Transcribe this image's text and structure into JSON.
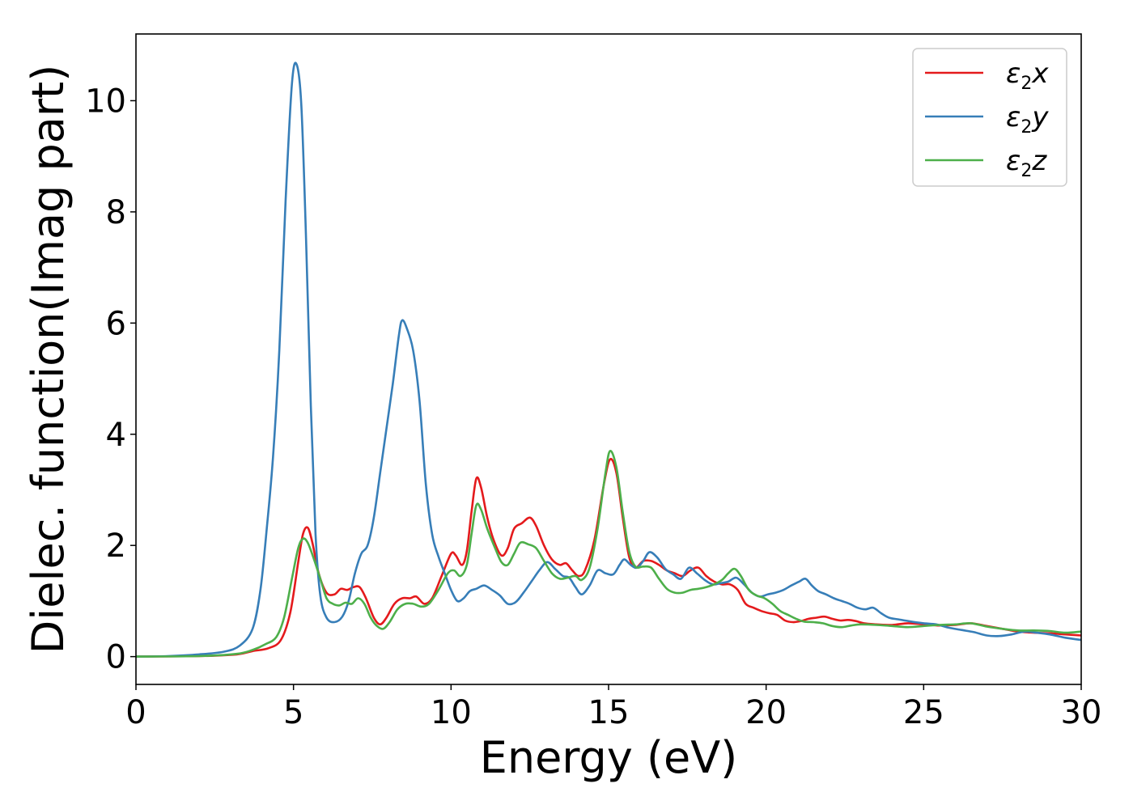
{
  "chart_data": {
    "type": "line",
    "title": "",
    "xlabel": "Energy (eV)",
    "ylabel": "Dielec. function(Imag part)",
    "xlim": [
      0,
      30
    ],
    "ylim": [
      -0.5,
      11.2
    ],
    "xticks": [
      0,
      5,
      10,
      15,
      20,
      25,
      30
    ],
    "yticks": [
      0,
      2,
      4,
      6,
      8,
      10
    ],
    "xtick_labels": [
      "0",
      "5",
      "10",
      "15",
      "20",
      "25",
      "30"
    ],
    "ytick_labels": [
      "0",
      "2",
      "4",
      "6",
      "8",
      "10"
    ],
    "grid": false,
    "legend_position": "top-right",
    "series": [
      {
        "name": "ε2x",
        "legend_base": "ε",
        "legend_sub": "2",
        "legend_var": "x",
        "color": "#e41a1c",
        "points": [
          [
            0,
            0
          ],
          [
            2,
            0.01
          ],
          [
            3.2,
            0.04
          ],
          [
            3.7,
            0.1
          ],
          [
            4.2,
            0.15
          ],
          [
            4.6,
            0.3
          ],
          [
            4.9,
            0.8
          ],
          [
            5.15,
            1.7
          ],
          [
            5.3,
            2.2
          ],
          [
            5.45,
            2.32
          ],
          [
            5.6,
            2.05
          ],
          [
            5.8,
            1.5
          ],
          [
            6.05,
            1.15
          ],
          [
            6.3,
            1.12
          ],
          [
            6.5,
            1.22
          ],
          [
            6.7,
            1.2
          ],
          [
            6.9,
            1.25
          ],
          [
            7.1,
            1.25
          ],
          [
            7.3,
            1.05
          ],
          [
            7.55,
            0.7
          ],
          [
            7.75,
            0.58
          ],
          [
            7.95,
            0.7
          ],
          [
            8.2,
            0.95
          ],
          [
            8.45,
            1.05
          ],
          [
            8.7,
            1.05
          ],
          [
            8.9,
            1.08
          ],
          [
            9.15,
            0.95
          ],
          [
            9.4,
            1.05
          ],
          [
            9.7,
            1.45
          ],
          [
            10.0,
            1.85
          ],
          [
            10.15,
            1.82
          ],
          [
            10.35,
            1.65
          ],
          [
            10.5,
            1.9
          ],
          [
            10.65,
            2.6
          ],
          [
            10.8,
            3.2
          ],
          [
            10.95,
            3.05
          ],
          [
            11.15,
            2.5
          ],
          [
            11.35,
            2.1
          ],
          [
            11.6,
            1.82
          ],
          [
            11.8,
            1.95
          ],
          [
            12.0,
            2.3
          ],
          [
            12.25,
            2.4
          ],
          [
            12.5,
            2.5
          ],
          [
            12.7,
            2.35
          ],
          [
            12.95,
            2.0
          ],
          [
            13.2,
            1.75
          ],
          [
            13.45,
            1.65
          ],
          [
            13.65,
            1.68
          ],
          [
            13.85,
            1.55
          ],
          [
            14.05,
            1.45
          ],
          [
            14.25,
            1.55
          ],
          [
            14.55,
            2.1
          ],
          [
            14.85,
            3.1
          ],
          [
            15.05,
            3.55
          ],
          [
            15.25,
            3.3
          ],
          [
            15.45,
            2.5
          ],
          [
            15.65,
            1.8
          ],
          [
            15.85,
            1.6
          ],
          [
            16.1,
            1.72
          ],
          [
            16.35,
            1.72
          ],
          [
            16.6,
            1.65
          ],
          [
            16.85,
            1.55
          ],
          [
            17.1,
            1.5
          ],
          [
            17.35,
            1.45
          ],
          [
            17.6,
            1.55
          ],
          [
            17.85,
            1.6
          ],
          [
            18.1,
            1.45
          ],
          [
            18.35,
            1.35
          ],
          [
            18.6,
            1.3
          ],
          [
            18.85,
            1.3
          ],
          [
            19.1,
            1.2
          ],
          [
            19.35,
            0.95
          ],
          [
            19.6,
            0.88
          ],
          [
            19.85,
            0.82
          ],
          [
            20.1,
            0.78
          ],
          [
            20.35,
            0.75
          ],
          [
            20.6,
            0.65
          ],
          [
            20.85,
            0.62
          ],
          [
            21.1,
            0.64
          ],
          [
            21.35,
            0.68
          ],
          [
            21.6,
            0.7
          ],
          [
            21.85,
            0.72
          ],
          [
            22.1,
            0.68
          ],
          [
            22.35,
            0.65
          ],
          [
            22.6,
            0.66
          ],
          [
            22.85,
            0.64
          ],
          [
            23.1,
            0.6
          ],
          [
            23.5,
            0.58
          ],
          [
            24.0,
            0.57
          ],
          [
            24.5,
            0.6
          ],
          [
            25.0,
            0.58
          ],
          [
            25.5,
            0.56
          ],
          [
            26.0,
            0.57
          ],
          [
            26.5,
            0.6
          ],
          [
            27.0,
            0.55
          ],
          [
            27.5,
            0.5
          ],
          [
            28.0,
            0.45
          ],
          [
            28.5,
            0.43
          ],
          [
            29.0,
            0.42
          ],
          [
            29.5,
            0.4
          ],
          [
            30,
            0.38
          ]
        ]
      },
      {
        "name": "ε2y",
        "legend_base": "ε",
        "legend_sub": "2",
        "legend_var": "y",
        "color": "#377eb8",
        "points": [
          [
            0,
            0
          ],
          [
            1,
            0.01
          ],
          [
            2,
            0.04
          ],
          [
            2.8,
            0.09
          ],
          [
            3.3,
            0.2
          ],
          [
            3.7,
            0.5
          ],
          [
            3.95,
            1.2
          ],
          [
            4.15,
            2.3
          ],
          [
            4.35,
            3.6
          ],
          [
            4.55,
            5.5
          ],
          [
            4.75,
            8.2
          ],
          [
            4.95,
            10.3
          ],
          [
            5.1,
            10.65
          ],
          [
            5.25,
            9.9
          ],
          [
            5.4,
            7.5
          ],
          [
            5.55,
            4.5
          ],
          [
            5.7,
            2.2
          ],
          [
            5.85,
            1.1
          ],
          [
            6.05,
            0.7
          ],
          [
            6.3,
            0.62
          ],
          [
            6.55,
            0.72
          ],
          [
            6.75,
            1.0
          ],
          [
            6.95,
            1.5
          ],
          [
            7.15,
            1.85
          ],
          [
            7.35,
            2.0
          ],
          [
            7.55,
            2.5
          ],
          [
            7.75,
            3.3
          ],
          [
            7.95,
            4.1
          ],
          [
            8.15,
            4.9
          ],
          [
            8.35,
            5.8
          ],
          [
            8.45,
            6.05
          ],
          [
            8.6,
            5.9
          ],
          [
            8.8,
            5.5
          ],
          [
            9.0,
            4.6
          ],
          [
            9.2,
            3.1
          ],
          [
            9.4,
            2.2
          ],
          [
            9.6,
            1.8
          ],
          [
            9.8,
            1.5
          ],
          [
            10.0,
            1.2
          ],
          [
            10.2,
            1.0
          ],
          [
            10.4,
            1.05
          ],
          [
            10.6,
            1.18
          ],
          [
            10.8,
            1.22
          ],
          [
            11.05,
            1.28
          ],
          [
            11.3,
            1.2
          ],
          [
            11.55,
            1.1
          ],
          [
            11.8,
            0.95
          ],
          [
            12.05,
            0.98
          ],
          [
            12.3,
            1.15
          ],
          [
            12.55,
            1.35
          ],
          [
            12.8,
            1.55
          ],
          [
            13.05,
            1.7
          ],
          [
            13.3,
            1.58
          ],
          [
            13.55,
            1.45
          ],
          [
            13.75,
            1.42
          ],
          [
            13.95,
            1.25
          ],
          [
            14.15,
            1.12
          ],
          [
            14.4,
            1.28
          ],
          [
            14.65,
            1.55
          ],
          [
            14.9,
            1.5
          ],
          [
            15.15,
            1.48
          ],
          [
            15.35,
            1.65
          ],
          [
            15.5,
            1.75
          ],
          [
            15.7,
            1.65
          ],
          [
            15.9,
            1.6
          ],
          [
            16.1,
            1.72
          ],
          [
            16.3,
            1.88
          ],
          [
            16.55,
            1.78
          ],
          [
            16.8,
            1.58
          ],
          [
            17.05,
            1.48
          ],
          [
            17.3,
            1.4
          ],
          [
            17.55,
            1.6
          ],
          [
            17.8,
            1.5
          ],
          [
            18.05,
            1.38
          ],
          [
            18.3,
            1.3
          ],
          [
            18.55,
            1.32
          ],
          [
            18.8,
            1.35
          ],
          [
            19.05,
            1.42
          ],
          [
            19.3,
            1.3
          ],
          [
            19.55,
            1.15
          ],
          [
            19.8,
            1.08
          ],
          [
            20.05,
            1.12
          ],
          [
            20.3,
            1.15
          ],
          [
            20.55,
            1.2
          ],
          [
            20.8,
            1.28
          ],
          [
            21.05,
            1.35
          ],
          [
            21.25,
            1.4
          ],
          [
            21.45,
            1.28
          ],
          [
            21.65,
            1.18
          ],
          [
            21.9,
            1.12
          ],
          [
            22.15,
            1.05
          ],
          [
            22.4,
            1.0
          ],
          [
            22.65,
            0.95
          ],
          [
            22.9,
            0.88
          ],
          [
            23.15,
            0.85
          ],
          [
            23.4,
            0.88
          ],
          [
            23.65,
            0.78
          ],
          [
            23.9,
            0.7
          ],
          [
            24.2,
            0.67
          ],
          [
            24.6,
            0.63
          ],
          [
            25.0,
            0.6
          ],
          [
            25.4,
            0.58
          ],
          [
            25.8,
            0.52
          ],
          [
            26.2,
            0.48
          ],
          [
            26.6,
            0.44
          ],
          [
            27.0,
            0.38
          ],
          [
            27.4,
            0.37
          ],
          [
            27.8,
            0.4
          ],
          [
            28.2,
            0.45
          ],
          [
            28.6,
            0.43
          ],
          [
            29.0,
            0.4
          ],
          [
            29.5,
            0.34
          ],
          [
            30,
            0.3
          ]
        ]
      },
      {
        "name": "ε2z",
        "legend_base": "ε",
        "legend_sub": "2",
        "legend_var": "z",
        "color": "#4daf4a",
        "points": [
          [
            0,
            0
          ],
          [
            2,
            0.01
          ],
          [
            3.2,
            0.05
          ],
          [
            3.7,
            0.12
          ],
          [
            4.1,
            0.22
          ],
          [
            4.45,
            0.35
          ],
          [
            4.7,
            0.7
          ],
          [
            4.95,
            1.4
          ],
          [
            5.15,
            1.95
          ],
          [
            5.3,
            2.12
          ],
          [
            5.45,
            2.05
          ],
          [
            5.65,
            1.75
          ],
          [
            5.85,
            1.4
          ],
          [
            6.05,
            1.05
          ],
          [
            6.25,
            0.95
          ],
          [
            6.45,
            0.92
          ],
          [
            6.65,
            0.97
          ],
          [
            6.85,
            0.95
          ],
          [
            7.05,
            1.05
          ],
          [
            7.25,
            0.95
          ],
          [
            7.45,
            0.7
          ],
          [
            7.65,
            0.55
          ],
          [
            7.85,
            0.5
          ],
          [
            8.05,
            0.62
          ],
          [
            8.3,
            0.85
          ],
          [
            8.55,
            0.95
          ],
          [
            8.8,
            0.95
          ],
          [
            9.05,
            0.9
          ],
          [
            9.3,
            0.95
          ],
          [
            9.6,
            1.2
          ],
          [
            9.9,
            1.5
          ],
          [
            10.1,
            1.55
          ],
          [
            10.3,
            1.45
          ],
          [
            10.5,
            1.65
          ],
          [
            10.65,
            2.2
          ],
          [
            10.8,
            2.72
          ],
          [
            10.95,
            2.65
          ],
          [
            11.15,
            2.3
          ],
          [
            11.4,
            1.95
          ],
          [
            11.6,
            1.7
          ],
          [
            11.8,
            1.65
          ],
          [
            12.0,
            1.85
          ],
          [
            12.2,
            2.05
          ],
          [
            12.45,
            2.02
          ],
          [
            12.7,
            1.95
          ],
          [
            12.95,
            1.72
          ],
          [
            13.2,
            1.5
          ],
          [
            13.45,
            1.4
          ],
          [
            13.7,
            1.42
          ],
          [
            13.95,
            1.45
          ],
          [
            14.15,
            1.38
          ],
          [
            14.4,
            1.6
          ],
          [
            14.65,
            2.3
          ],
          [
            14.9,
            3.3
          ],
          [
            15.05,
            3.7
          ],
          [
            15.25,
            3.4
          ],
          [
            15.45,
            2.6
          ],
          [
            15.65,
            1.9
          ],
          [
            15.85,
            1.62
          ],
          [
            16.1,
            1.62
          ],
          [
            16.35,
            1.6
          ],
          [
            16.6,
            1.4
          ],
          [
            16.85,
            1.22
          ],
          [
            17.1,
            1.15
          ],
          [
            17.35,
            1.15
          ],
          [
            17.6,
            1.2
          ],
          [
            17.85,
            1.22
          ],
          [
            18.1,
            1.25
          ],
          [
            18.35,
            1.3
          ],
          [
            18.6,
            1.38
          ],
          [
            18.8,
            1.5
          ],
          [
            19.0,
            1.58
          ],
          [
            19.2,
            1.45
          ],
          [
            19.45,
            1.2
          ],
          [
            19.7,
            1.1
          ],
          [
            19.95,
            1.05
          ],
          [
            20.2,
            0.95
          ],
          [
            20.45,
            0.82
          ],
          [
            20.7,
            0.75
          ],
          [
            20.95,
            0.68
          ],
          [
            21.2,
            0.63
          ],
          [
            21.5,
            0.62
          ],
          [
            21.8,
            0.6
          ],
          [
            22.1,
            0.55
          ],
          [
            22.4,
            0.53
          ],
          [
            22.7,
            0.56
          ],
          [
            23.0,
            0.58
          ],
          [
            23.5,
            0.57
          ],
          [
            24.0,
            0.55
          ],
          [
            24.5,
            0.53
          ],
          [
            25.0,
            0.55
          ],
          [
            25.5,
            0.57
          ],
          [
            26.0,
            0.58
          ],
          [
            26.5,
            0.6
          ],
          [
            27.0,
            0.54
          ],
          [
            27.5,
            0.5
          ],
          [
            28.0,
            0.47
          ],
          [
            28.5,
            0.47
          ],
          [
            29.0,
            0.46
          ],
          [
            29.5,
            0.43
          ],
          [
            30,
            0.45
          ]
        ]
      }
    ]
  }
}
